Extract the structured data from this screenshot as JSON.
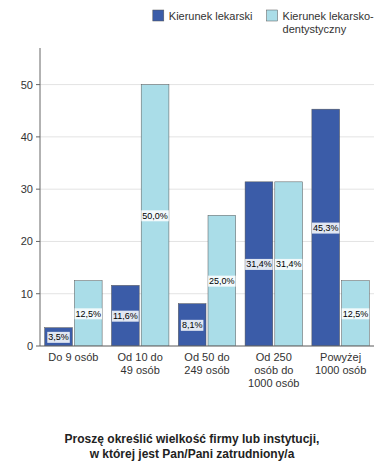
{
  "chart_data": {
    "type": "bar",
    "title": "Proszę określić wielkość firmy lub instytucji,\nw której jest Pan/Pani zatrudniony/a",
    "categories": [
      "Do 9 osób",
      "Od 10 do\n49 osób",
      "Od 50 do\n249 osób",
      "Od 250\nosób do\n1000 osób",
      "Powyżej\n1000 osób"
    ],
    "series": [
      {
        "name": "Kierunek lekarski",
        "color": "#3B5CA8",
        "values": [
          3.5,
          11.6,
          8.1,
          31.4,
          45.3
        ],
        "value_labels": [
          "3,5%",
          "11,6%",
          "8,1%",
          "31,4%",
          "45,3%"
        ]
      },
      {
        "name": "Kierunek lekarsko-\ndentystyczny",
        "color": "#AADDE8",
        "values": [
          12.5,
          50.0,
          25.0,
          31.4,
          12.5
        ],
        "value_labels": [
          "12,5%",
          "50,0%",
          "25,0%",
          "31,4%",
          "12,5%"
        ]
      }
    ],
    "ylim": [
      0,
      57
    ],
    "yticks": [
      0,
      10,
      20,
      30,
      40,
      50
    ],
    "grid": true,
    "legend": "upper right",
    "data_labels": true
  }
}
